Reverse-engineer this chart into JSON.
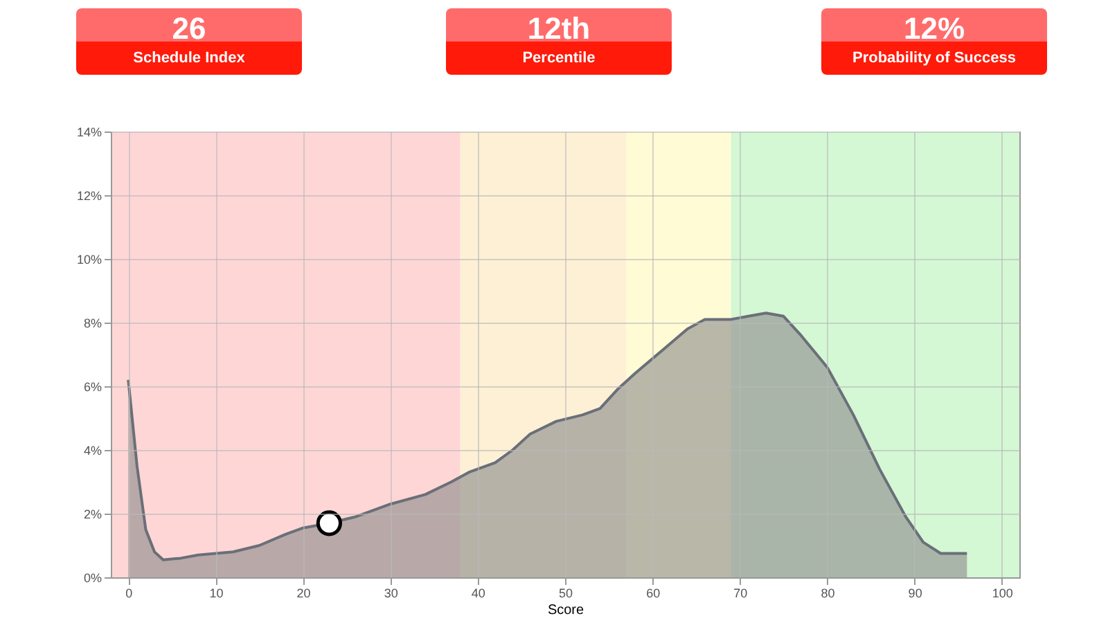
{
  "chart_data": [
    {
      "type": "other",
      "title": "26",
      "subtitle": "Schedule Index"
    },
    {
      "type": "other",
      "title": "12th",
      "subtitle": "Percentile"
    },
    {
      "type": "other",
      "title": "12%",
      "subtitle": "Probability of Success"
    },
    {
      "type": "area",
      "xlabel": "Score",
      "xlim": [
        -2,
        102
      ],
      "xticks": [
        0,
        10,
        20,
        30,
        40,
        50,
        60,
        70,
        80,
        90,
        100
      ],
      "ylim": [
        0,
        14
      ],
      "yticks": [
        {
          "value": 0,
          "label": "0%"
        },
        {
          "value": 2,
          "label": "2%"
        },
        {
          "value": 4,
          "label": "4%"
        },
        {
          "value": 6,
          "label": "6%"
        },
        {
          "value": 8,
          "label": "8%"
        },
        {
          "value": 10,
          "label": "10%"
        },
        {
          "value": 12,
          "label": "12%"
        },
        {
          "value": 14,
          "label": "14%"
        }
      ],
      "grid": true,
      "bands": [
        {
          "axis": "x",
          "from": -2,
          "to": 38,
          "color": "#ffd6d6"
        },
        {
          "axis": "x",
          "from": 38,
          "to": 57,
          "color": "#fdf0d5"
        },
        {
          "axis": "x",
          "from": 57,
          "to": 69,
          "color": "#fffbd5"
        },
        {
          "axis": "x",
          "from": 69,
          "to": 102,
          "color": "#d4f7d4"
        }
      ],
      "series": [
        {
          "type": "area",
          "color": "#8c8c8c",
          "x": [
            0,
            1,
            2,
            3,
            4,
            6,
            8,
            12,
            15,
            18,
            20,
            23,
            26,
            30,
            34,
            37,
            39,
            42,
            44,
            46,
            49,
            52,
            54,
            56,
            58,
            61,
            64,
            66,
            69,
            71,
            73,
            75,
            77,
            80,
            83,
            86,
            89,
            91,
            93,
            96
          ],
          "values": [
            6.2,
            3.5,
            1.5,
            0.8,
            0.55,
            0.6,
            0.7,
            0.8,
            1.0,
            1.35,
            1.55,
            1.7,
            1.9,
            2.3,
            2.6,
            3.0,
            3.3,
            3.6,
            4.0,
            4.5,
            4.9,
            5.1,
            5.3,
            5.9,
            6.4,
            7.1,
            7.8,
            8.1,
            8.1,
            8.2,
            8.3,
            8.2,
            7.6,
            6.6,
            5.1,
            3.4,
            1.9,
            1.1,
            0.75,
            0.75
          ]
        },
        {
          "type": "scatter",
          "color": "#ffffff",
          "marker": "circle",
          "x": [
            23
          ],
          "values": [
            1.7
          ]
        }
      ]
    }
  ]
}
